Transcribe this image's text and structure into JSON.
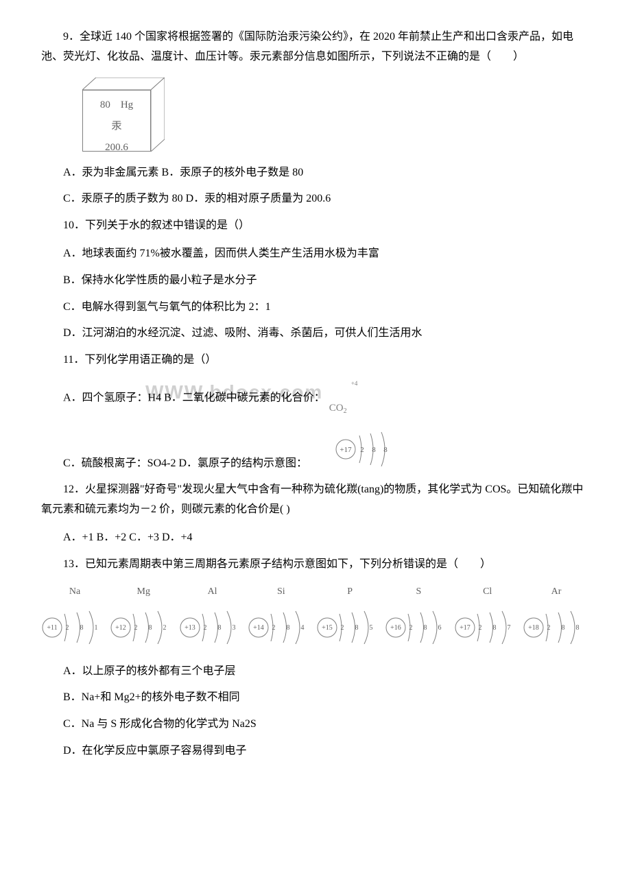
{
  "q9": {
    "text": "9．全球近 140 个国家将根据签署的《国际防治汞污染公约》，在 2020 年前禁止生产和出口含汞产品，如电池、荧光灯、化妆品、温度计、血压计等。汞元素部分信息如图所示，下列说法不正确的是（　　）",
    "box": {
      "num": "80",
      "sym": "Hg",
      "name": "汞",
      "mass": "200.6"
    },
    "optAB": "A．汞为非金属元素 B．汞原子的核外电子数是 80",
    "optCD": "C．汞原子的质子数为 80 D．汞的相对原子质量为 200.6"
  },
  "q10": {
    "text": "10．下列关于水的叙述中错误的是（）",
    "A": "A．地球表面约 71%被水覆盖，因而供人类生产生活用水极为丰富",
    "B": "B．保持水化学性质的最小粒子是水分子",
    "C": "C．电解水得到氢气与氧气的体积比为 2：1",
    "D": "D．江河湖泊的水经沉淀、过滤、吸附、消毒、杀菌后，可供人们生活用水"
  },
  "q11": {
    "text": "11．下列化学用语正确的是（）",
    "A_prefix": "A．四个氢原子：H4 B．二氧化碳中碳元素的化合价：",
    "C_prefix": "C．硫酸根离子：SO4-2 D．氯原子的结构示意图：",
    "cl_atom": {
      "nucleus": "+17",
      "shells": [
        "2",
        "8",
        "8"
      ]
    }
  },
  "q12": {
    "text": "12．火星探测器\"好奇号\"发现火星大气中含有一种称为硫化羰(tang)的物质，其化学式为 COS。已知硫化羰中氧元素和硫元素均为－2 价，则碳元素的化合价是(  )",
    "opts": "A．+1 B．+2 C．+3 D．+4"
  },
  "q13": {
    "text": "13．已知元素周期表中第三周期各元素原子结构示意图如下，下列分析错误的是（　　）",
    "elements": [
      {
        "label": "Na",
        "nucleus": "+11",
        "shells": [
          "2",
          "8",
          "1"
        ]
      },
      {
        "label": "Mg",
        "nucleus": "+12",
        "shells": [
          "2",
          "8",
          "2"
        ]
      },
      {
        "label": "Al",
        "nucleus": "+13",
        "shells": [
          "2",
          "8",
          "3"
        ]
      },
      {
        "label": "Si",
        "nucleus": "+14",
        "shells": [
          "2",
          "8",
          "4"
        ]
      },
      {
        "label": "P",
        "nucleus": "+15",
        "shells": [
          "2",
          "8",
          "5"
        ]
      },
      {
        "label": "S",
        "nucleus": "+16",
        "shells": [
          "2",
          "8",
          "6"
        ]
      },
      {
        "label": "Cl",
        "nucleus": "+17",
        "shells": [
          "2",
          "8",
          "7"
        ]
      },
      {
        "label": "Ar",
        "nucleus": "+18",
        "shells": [
          "2",
          "8",
          "8"
        ]
      }
    ],
    "A": "A．以上原子的核外都有三个电子层",
    "B": "B．Na+和 Mg2+的核外电子数不相同",
    "C": "C．Na 与 S 形成化合物的化学式为 Na2S",
    "D": "D．在化学反应中氯原子容易得到电子"
  },
  "watermark": "WWW.bdocx.com",
  "colors": {
    "text": "#000000",
    "gray": "#808080",
    "lightgray": "#d0d0d0",
    "bg": "#ffffff"
  }
}
